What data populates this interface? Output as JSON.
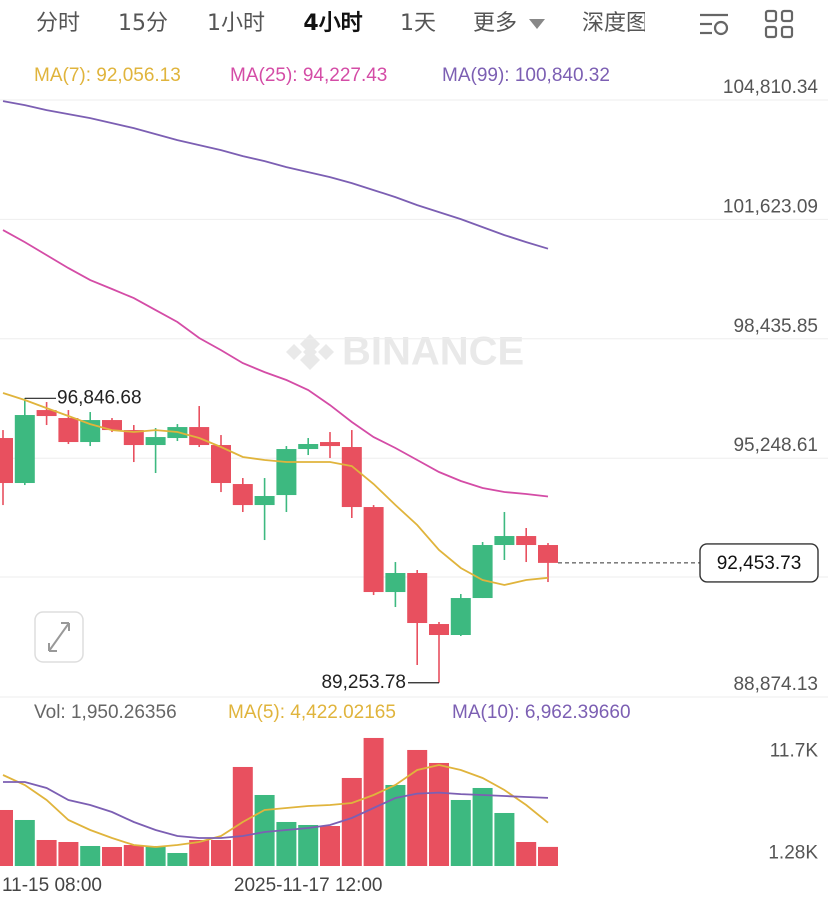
{
  "tabs": [
    "分时",
    "15分",
    "1小时",
    "4小时",
    "1天",
    "更多",
    "深度图"
  ],
  "active_tab": 3,
  "watermark": "BINANCE",
  "chart_data": [
    {
      "type": "candlestick",
      "categories": [
        null,
        "11-15 08:00",
        null,
        null,
        null,
        null,
        null,
        null,
        null,
        null,
        null,
        null,
        null,
        null,
        "2025-11-17 12:00",
        null,
        null,
        null,
        null,
        null,
        null,
        null,
        null,
        null,
        null,
        null
      ],
      "open": [
        95787,
        94586,
        96534,
        96321,
        95680,
        96267,
        96000,
        95600,
        95787,
        96080,
        95600,
        94559,
        93998,
        94265,
        95493,
        95680,
        95547,
        93945,
        91676,
        92184,
        90822,
        90529,
        91516,
        92931,
        93171,
        92931
      ],
      "high": [
        96000,
        96846.68,
        96748,
        96534,
        96481,
        96321,
        96134,
        96054,
        96160,
        96641,
        95867,
        94719,
        94719,
        95573,
        95787,
        95947,
        96000,
        93998,
        92477,
        92264,
        90876,
        91623,
        93011,
        93812,
        93385,
        92984
      ],
      "low": [
        93998,
        94532,
        96134,
        95627,
        95573,
        95947,
        95146,
        94853,
        95707,
        95547,
        94345,
        93812,
        93064,
        93812,
        95333,
        95253,
        93652,
        91596,
        91276,
        89728,
        89253.78,
        90502,
        91516,
        92531,
        92477,
        91943
      ],
      "close": [
        94586,
        96401,
        96374,
        95680,
        96267,
        96000,
        95600,
        95813,
        96080,
        95600,
        94586,
        93998,
        94239,
        95493,
        95627,
        95573,
        93945,
        91676,
        92184,
        90849,
        90529,
        91516,
        92931,
        93171,
        92931,
        92453.73
      ],
      "up_color": "#3db980",
      "down_color": "#e8505f",
      "series": [
        {
          "name": "MA(7): 92,056.13",
          "color": "#e0b43c",
          "values": [
            96988,
            96801,
            96587,
            96374,
            96160,
            96000,
            95947,
            96000,
            95947,
            95787,
            95547,
            95280,
            95200,
            95146,
            95146,
            95146,
            95039,
            94559,
            93998,
            93465,
            92797,
            92317,
            91997,
            91863,
            91997,
            92056.13
          ]
        },
        {
          "name": "MA(25): 94,227.43",
          "color": "#d44ca6",
          "values": [
            101338,
            101018,
            100671,
            100324,
            100004,
            99764,
            99523,
            99203,
            98883,
            98456,
            98135,
            97788,
            97548,
            97335,
            97068,
            96667,
            96214,
            95813,
            95520,
            95200,
            94879,
            94639,
            94452,
            94345,
            94292,
            94227.43
          ]
        },
        {
          "name": "MA(99): 100,840.32",
          "color": "#7c5fb3",
          "values": [
            104781,
            104674,
            104541,
            104434,
            104328,
            104194,
            104061,
            103900,
            103740,
            103607,
            103473,
            103313,
            103180,
            103020,
            102886,
            102753,
            102593,
            102406,
            102219,
            102005,
            101819,
            101632,
            101418,
            101205,
            101018,
            100840.32
          ]
        }
      ],
      "ylim": [
        88874.13,
        105878
      ],
      "yticks": [
        {
          "value": 104810.34,
          "label": "104,810.34"
        },
        {
          "value": 101623.09,
          "label": "101,623.09"
        },
        {
          "value": 98435.85,
          "label": "98,435.85"
        },
        {
          "value": 95248.61,
          "label": "95,248.61"
        },
        {
          "value": 88874.13,
          "label": "88,874.13"
        }
      ],
      "grid": true,
      "high_label": {
        "value": 96846.68,
        "label": "96,846.68"
      },
      "low_label": {
        "value": 89253.78,
        "label": "89,253.78"
      },
      "last_price": {
        "value": 92453.73,
        "label": "92,453.73"
      }
    },
    {
      "type": "bar",
      "label": "Vol: 1,950.26356",
      "values": [
        5723,
        4701,
        2657,
        2453,
        2044,
        1942,
        2146,
        2044,
        1329,
        2657,
        2657,
        10118,
        7256,
        4497,
        4190,
        4088,
        8994,
        13082,
        8278,
        11855,
        10527,
        6745,
        7972,
        5417,
        2453,
        1950.26356
      ],
      "series": [
        {
          "name": "MA(5): 4,422.02165",
          "color": "#e0b43c",
          "values": [
            9300,
            8278,
            6745,
            4701,
            3679,
            2862,
            2146,
            1942,
            2146,
            2453,
            3066,
            4497,
            5723,
            5928,
            6132,
            6234,
            6439,
            7256,
            8278,
            9811,
            10322,
            9811,
            8994,
            7767,
            6234,
            4422.02165
          ]
        },
        {
          "name": "MA(10): 6,962.39660",
          "color": "#7c5fb3",
          "values": [
            8585,
            8585,
            7972,
            6745,
            6234,
            5519,
            4497,
            3679,
            3066,
            2862,
            2862,
            3066,
            3475,
            3679,
            3884,
            4190,
            4906,
            5928,
            6950,
            7400,
            7500,
            7350,
            7250,
            7150,
            7050,
            6962.3966
          ]
        }
      ],
      "ylim": [
        0,
        14100
      ],
      "yticks": [
        {
          "value": 11700,
          "label": "11.7K"
        },
        {
          "value": 1280,
          "label": "1.28K"
        }
      ]
    }
  ]
}
